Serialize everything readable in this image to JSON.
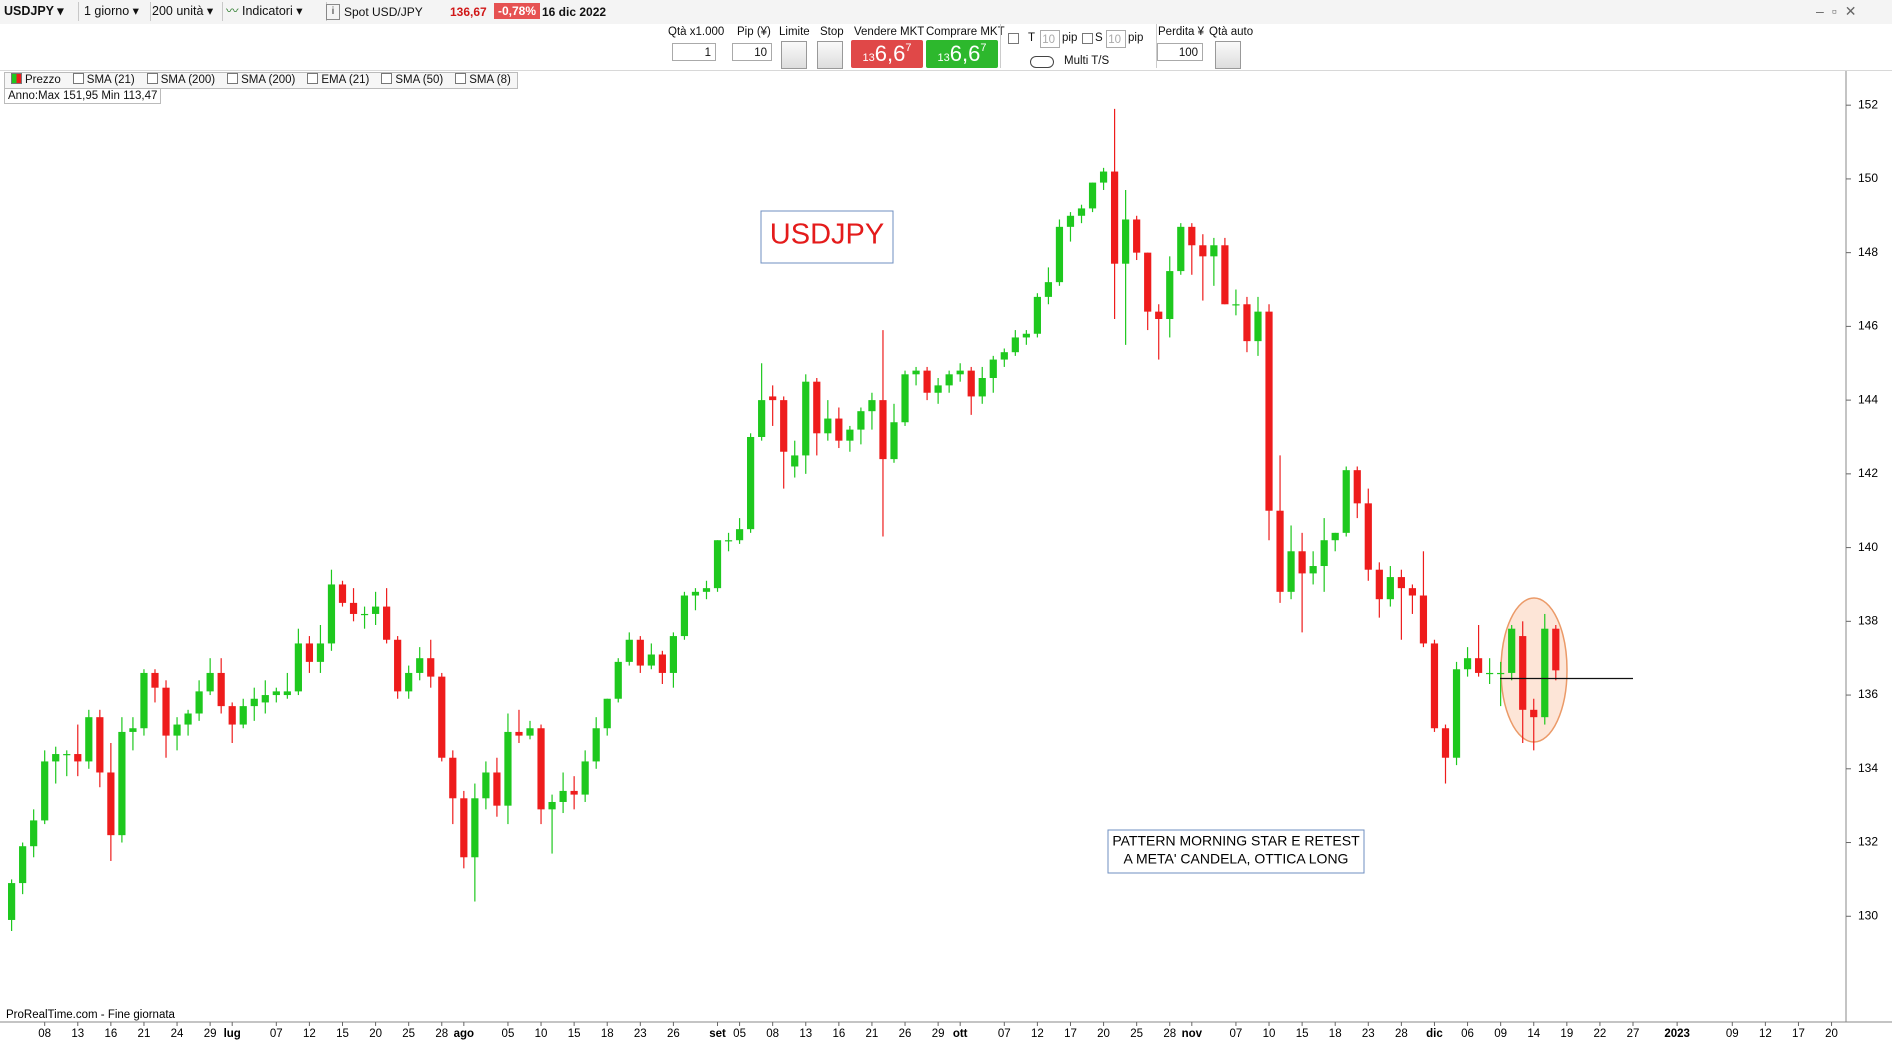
{
  "toolbar": {
    "symbol": "USDJPY",
    "timeframe": "1 giorno",
    "units": "200 unità",
    "indicators": "Indicatori",
    "instrument": "Spot USD/JPY",
    "price": "136,67",
    "change": "-0,78%",
    "date": "16 dic 2022"
  },
  "order_panel": {
    "qty_label": "Qtà x1.000",
    "qty": "1",
    "pip_label": "Pip (¥)",
    "pip": "10",
    "limit": "Limite",
    "stop": "Stop",
    "sell_label": "Vendere MKT",
    "sell": {
      "head": "13",
      "big": "6,6",
      "tail": "7"
    },
    "buy_label": "Comprare MKT",
    "buy": {
      "head": "13",
      "big": "6,6",
      "tail": "7"
    },
    "t_label": "T",
    "t_value": "10",
    "t_unit": "pip",
    "s_label": "S",
    "s_value": "10",
    "s_unit": "pip",
    "multi": "Multi T/S",
    "loss_label": "Perdita ¥",
    "loss": "100",
    "auto_qty": "Qtà auto"
  },
  "indicator_bar": {
    "items": [
      "Prezzo",
      "SMA (21)",
      "SMA (200)",
      "SMA (200)",
      "EMA (21)",
      "SMA (50)",
      "SMA (8)"
    ]
  },
  "range_info": "Anno:Max 151,95 Min 113,47",
  "footer": "ProRealTime.com - Fine giornata",
  "chart_data": {
    "type": "candlestick",
    "up_color": "#1ec81e",
    "down_color": "#ee1c1c",
    "grid": false,
    "ylim": [
      128,
      152.9
    ],
    "yticks": [
      130,
      132,
      134,
      136,
      138,
      140,
      142,
      144,
      146,
      148,
      150,
      152
    ],
    "annotations": [
      "USDJPY",
      "PATTERN MORNING STAR E RETEST",
      "A META' CANDELA, OTTICA LONG"
    ],
    "level": 136.45,
    "categories": [
      null,
      null,
      null,
      "08",
      null,
      null,
      "13",
      null,
      null,
      "16",
      null,
      null,
      "21",
      null,
      null,
      "24",
      null,
      null,
      "29",
      null,
      "lug",
      null,
      null,
      null,
      "07",
      null,
      null,
      "12",
      null,
      null,
      "15",
      null,
      null,
      "20",
      null,
      null,
      "25",
      null,
      null,
      "28",
      null,
      "ago",
      null,
      null,
      null,
      "05",
      null,
      null,
      "10",
      null,
      null,
      "15",
      null,
      null,
      "18",
      null,
      null,
      "23",
      null,
      null,
      "26",
      null,
      null,
      null,
      "set",
      null,
      "05",
      null,
      null,
      "08",
      null,
      null,
      "13",
      null,
      null,
      "16",
      null,
      null,
      "21",
      null,
      null,
      "26",
      null,
      null,
      "29",
      null,
      "ott",
      null,
      null,
      null,
      "07",
      null,
      null,
      "12",
      null,
      null,
      "17",
      null,
      null,
      "20",
      null,
      null,
      "25",
      null,
      null,
      "28",
      null,
      "nov",
      null,
      null,
      null,
      "07",
      null,
      null,
      "10",
      null,
      null,
      "15",
      null,
      null,
      "18",
      null,
      null,
      "23",
      null,
      null,
      "28",
      null,
      null,
      "dic",
      null,
      null,
      "06",
      null,
      null,
      "09",
      null,
      null,
      "14",
      null,
      null,
      "19",
      null,
      null,
      "22",
      null,
      null,
      "27",
      null,
      null,
      null,
      "2023",
      null,
      null,
      null,
      null,
      "09",
      null,
      null,
      "12",
      null,
      null,
      "17",
      null,
      null,
      "20"
    ],
    "open": [
      129.9,
      130.9,
      131.9,
      132.6,
      134.2,
      134.4,
      134.4,
      134.2,
      135.4,
      133.9,
      132.2,
      135.0,
      135.1,
      136.6,
      136.2,
      134.9,
      135.2,
      135.5,
      136.1,
      136.6,
      135.7,
      135.2,
      135.7,
      135.8,
      136.0,
      136.0,
      136.1,
      137.4,
      136.9,
      137.4,
      139.0,
      138.5,
      138.2,
      138.2,
      138.4,
      137.5,
      136.1,
      136.6,
      137.0,
      136.5,
      134.3,
      133.2,
      131.6,
      133.2,
      133.9,
      133.0,
      135.0,
      134.9,
      135.1,
      132.9,
      133.1,
      133.4,
      133.3,
      134.2,
      135.1,
      135.9,
      136.9,
      137.5,
      136.8,
      137.1,
      136.6,
      137.6,
      138.7,
      138.8,
      138.9,
      140.2,
      140.2,
      140.5,
      143.0,
      144.1,
      144.0,
      142.2,
      142.5,
      144.5,
      143.1,
      143.5,
      142.9,
      143.2,
      143.7,
      144.0,
      142.4,
      143.4,
      144.7,
      144.8,
      144.2,
      144.4,
      144.7,
      144.8,
      144.1,
      144.6,
      145.1,
      145.3,
      145.7,
      145.8,
      146.8,
      147.2,
      148.7,
      149.0,
      149.2,
      149.9,
      150.2,
      147.7,
      148.9,
      148.0,
      146.4,
      146.2,
      147.5,
      148.7,
      148.2,
      147.9,
      148.2,
      146.6,
      146.6,
      145.6,
      146.4,
      141.0,
      138.8,
      139.9,
      139.3,
      139.5,
      140.2,
      140.4,
      142.1,
      141.2,
      139.4,
      138.6,
      139.2,
      138.9,
      138.7,
      137.4,
      135.1,
      134.3,
      136.7,
      137.0,
      136.6,
      136.6,
      136.6,
      137.6,
      135.6,
      135.4,
      137.8,
      null,
      null,
      null,
      null,
      null,
      null,
      null,
      null,
      null,
      null,
      null,
      null,
      null,
      null,
      null,
      null,
      null,
      null,
      null,
      null,
      null,
      null,
      null,
      null,
      null
    ],
    "high": [
      131.0,
      132.0,
      132.9,
      134.5,
      134.6,
      134.5,
      135.2,
      135.6,
      135.6,
      134.7,
      135.4,
      135.4,
      136.7,
      136.7,
      136.4,
      135.4,
      135.6,
      136.4,
      137.0,
      137.0,
      135.8,
      135.9,
      136.2,
      136.4,
      136.2,
      136.6,
      137.8,
      137.6,
      137.9,
      139.4,
      139.1,
      138.9,
      138.4,
      138.8,
      138.9,
      137.6,
      136.8,
      137.3,
      137.5,
      136.6,
      134.5,
      133.4,
      133.6,
      134.2,
      134.3,
      135.5,
      135.6,
      135.3,
      135.2,
      133.3,
      133.9,
      133.8,
      134.5,
      135.4,
      135.9,
      137.0,
      137.7,
      137.6,
      137.4,
      137.2,
      137.7,
      138.8,
      138.9,
      139.1,
      140.2,
      140.4,
      140.8,
      143.1,
      145.0,
      144.4,
      144.1,
      142.9,
      144.7,
      144.6,
      144.0,
      143.8,
      143.3,
      143.8,
      144.2,
      145.9,
      143.9,
      144.8,
      144.9,
      144.9,
      144.6,
      144.8,
      145.0,
      144.9,
      144.9,
      145.2,
      145.4,
      145.9,
      145.9,
      146.9,
      147.6,
      148.9,
      149.1,
      149.3,
      149.9,
      150.3,
      151.9,
      149.7,
      149.0,
      148.0,
      146.6,
      147.9,
      148.8,
      148.8,
      148.5,
      148.4,
      148.4,
      147.0,
      146.8,
      146.8,
      146.6,
      142.5,
      140.6,
      140.4,
      139.9,
      140.8,
      140.4,
      142.2,
      142.2,
      141.6,
      139.6,
      139.5,
      139.4,
      139.0,
      139.9,
      137.5,
      135.2,
      136.9,
      137.3,
      137.9,
      137.0,
      136.9,
      137.9,
      138.0,
      135.9,
      138.2,
      137.9,
      null,
      null,
      null,
      null,
      null,
      null,
      null,
      null,
      null,
      null,
      null,
      null,
      null,
      null,
      null,
      null,
      null,
      null,
      null,
      null,
      null,
      null,
      null,
      null,
      null
    ],
    "low": [
      129.6,
      130.6,
      131.6,
      132.5,
      133.6,
      133.8,
      133.8,
      134.0,
      133.5,
      131.5,
      132.0,
      134.5,
      134.9,
      135.8,
      134.3,
      134.5,
      134.9,
      135.3,
      136.0,
      135.5,
      134.7,
      135.1,
      135.3,
      135.5,
      135.8,
      135.9,
      136.0,
      136.6,
      136.6,
      137.2,
      138.4,
      138.0,
      137.8,
      137.9,
      137.4,
      135.9,
      135.9,
      136.4,
      136.2,
      134.2,
      132.5,
      131.3,
      130.4,
      132.9,
      132.7,
      132.5,
      134.7,
      134.8,
      132.5,
      131.7,
      132.8,
      132.9,
      133.1,
      134.0,
      134.9,
      135.8,
      136.8,
      136.6,
      136.7,
      136.3,
      136.2,
      137.5,
      138.3,
      138.6,
      138.8,
      139.9,
      140.1,
      140.4,
      142.9,
      143.3,
      141.6,
      141.9,
      142.0,
      142.5,
      142.9,
      142.7,
      142.6,
      142.8,
      143.2,
      140.3,
      142.3,
      143.3,
      144.4,
      144.0,
      143.9,
      144.2,
      144.5,
      143.6,
      143.9,
      144.2,
      144.9,
      145.2,
      145.5,
      145.7,
      146.6,
      147.1,
      148.3,
      148.8,
      149.1,
      149.7,
      146.2,
      145.5,
      147.8,
      145.9,
      145.1,
      145.7,
      147.4,
      147.4,
      146.7,
      147.1,
      146.6,
      146.3,
      145.3,
      145.2,
      140.2,
      138.5,
      138.6,
      137.7,
      139.0,
      138.8,
      139.9,
      140.3,
      140.8,
      139.1,
      138.1,
      138.4,
      137.5,
      138.2,
      137.3,
      135.0,
      133.6,
      134.1,
      136.5,
      136.5,
      136.3,
      135.7,
      136.4,
      134.7,
      134.5,
      135.2,
      136.4,
      null,
      null,
      null,
      null,
      null,
      null,
      null,
      null,
      null,
      null,
      null,
      null,
      null,
      null,
      null,
      null,
      null,
      null,
      null,
      null,
      null,
      null,
      null,
      null,
      null
    ],
    "close": [
      130.9,
      131.9,
      132.6,
      134.2,
      134.4,
      134.4,
      134.2,
      135.4,
      133.9,
      132.2,
      135.0,
      135.1,
      136.6,
      136.2,
      134.9,
      135.2,
      135.5,
      136.1,
      136.6,
      135.7,
      135.2,
      135.7,
      135.9,
      136.0,
      136.1,
      136.1,
      137.4,
      136.9,
      137.4,
      139.0,
      138.5,
      138.2,
      138.2,
      138.4,
      137.5,
      136.1,
      136.6,
      137.0,
      136.5,
      134.3,
      133.2,
      131.6,
      133.2,
      133.9,
      133.0,
      135.0,
      134.9,
      135.1,
      132.9,
      133.1,
      133.4,
      133.3,
      134.2,
      135.1,
      135.9,
      136.9,
      137.5,
      136.8,
      137.1,
      136.6,
      137.6,
      138.7,
      138.8,
      138.9,
      140.2,
      140.2,
      140.5,
      143.0,
      144.0,
      144.0,
      142.6,
      142.5,
      144.5,
      143.1,
      143.5,
      142.9,
      143.2,
      143.7,
      144.0,
      142.4,
      143.4,
      144.7,
      144.8,
      144.2,
      144.4,
      144.7,
      144.8,
      144.1,
      144.6,
      145.1,
      145.3,
      145.7,
      145.8,
      146.8,
      147.2,
      148.7,
      149.0,
      149.2,
      149.9,
      150.2,
      147.7,
      148.9,
      148.0,
      146.4,
      146.2,
      147.5,
      148.7,
      148.2,
      147.9,
      148.2,
      146.6,
      146.6,
      145.6,
      146.4,
      141.0,
      138.8,
      139.9,
      139.3,
      139.5,
      140.2,
      140.4,
      142.1,
      141.2,
      139.4,
      138.6,
      139.2,
      138.9,
      138.7,
      137.4,
      135.1,
      134.3,
      136.7,
      137.0,
      136.6,
      136.6,
      136.6,
      137.8,
      135.6,
      135.4,
      137.8,
      136.67,
      null,
      null,
      null,
      null,
      null,
      null,
      null,
      null,
      null,
      null,
      null,
      null,
      null,
      null,
      null,
      null,
      null,
      null,
      null,
      null,
      null,
      null,
      null,
      null,
      null
    ]
  }
}
